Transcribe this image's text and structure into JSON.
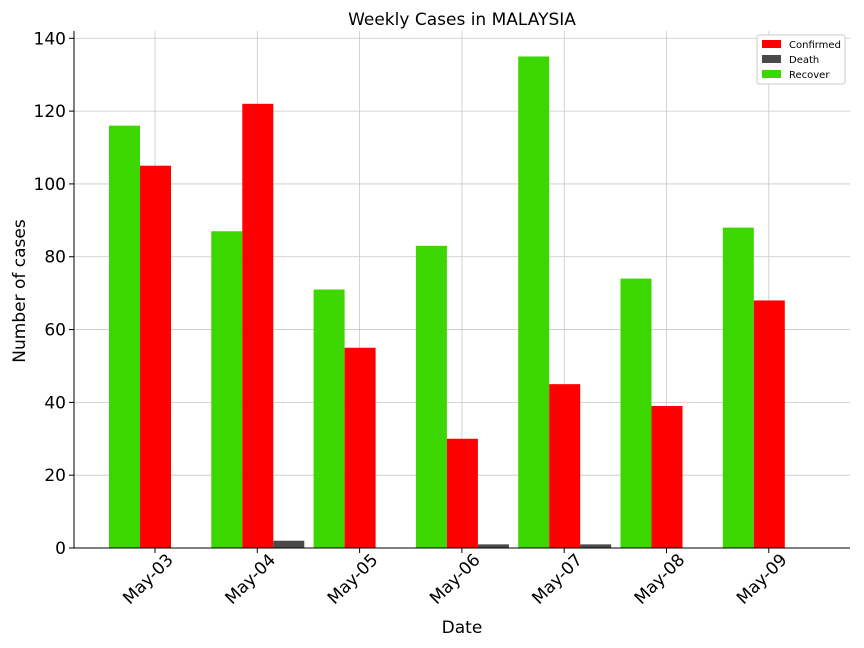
{
  "chart_data": {
    "type": "bar",
    "title": "Weekly Cases in MALAYSIA",
    "xlabel": "Date",
    "ylabel": "Number of cases",
    "categories": [
      "May-03",
      "May-04",
      "May-05",
      "May-06",
      "May-07",
      "May-08",
      "May-09"
    ],
    "series": [
      {
        "name": "Recover",
        "color": "#3cd700",
        "values": [
          116,
          87,
          71,
          83,
          135,
          74,
          88
        ]
      },
      {
        "name": "Confirmed",
        "color": "#ff0000",
        "values": [
          105,
          122,
          55,
          30,
          45,
          39,
          68
        ]
      },
      {
        "name": "Death",
        "color": "#4a4a4a",
        "values": [
          0,
          2,
          0,
          1,
          1,
          0,
          0
        ]
      }
    ],
    "legend_order": [
      "Confirmed",
      "Death",
      "Recover"
    ],
    "ylim": [
      0,
      142
    ],
    "yticks": [
      0,
      20,
      40,
      60,
      80,
      100,
      120,
      140
    ],
    "grid": true,
    "legend_position": "top-right"
  }
}
